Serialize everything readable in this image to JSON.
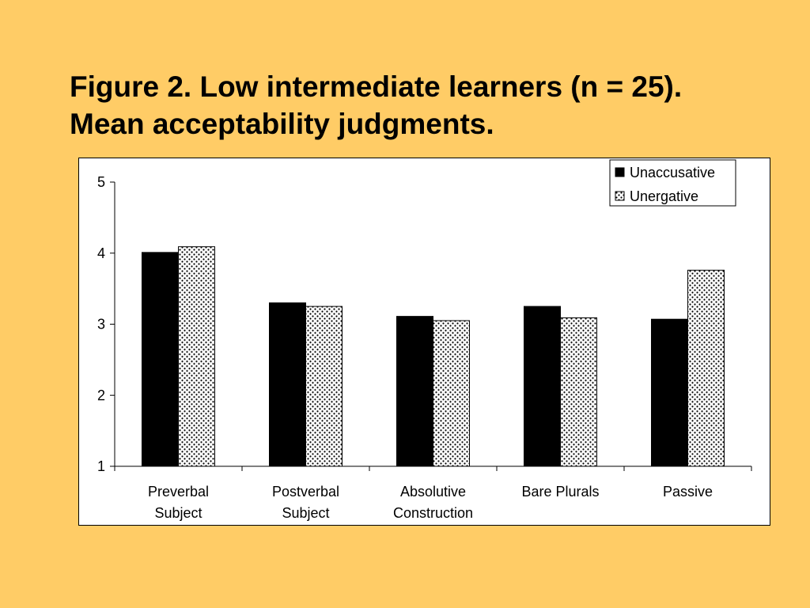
{
  "slide": {
    "title_line1": "Figure 2. Low intermediate learners (n = 25).",
    "title_line2": "Mean acceptability judgments."
  },
  "colors": {
    "background": "#FFCC66",
    "unaccusative": "#000000",
    "unergative_pattern": "dotted"
  },
  "chart_data": {
    "type": "bar",
    "categories": [
      [
        "Preverbal",
        "Subject"
      ],
      [
        "Postverbal",
        "Subject"
      ],
      [
        "Absolutive",
        "Construction"
      ],
      [
        "Bare Plurals"
      ],
      [
        "Passive"
      ]
    ],
    "series": [
      {
        "name": "Unaccusative",
        "values": [
          4.01,
          3.3,
          3.11,
          3.25,
          3.07
        ]
      },
      {
        "name": "Unergative",
        "values": [
          4.09,
          3.25,
          3.05,
          3.09,
          3.76
        ]
      }
    ],
    "ylim": [
      1,
      5
    ],
    "yticks": [
      1,
      2,
      3,
      4,
      5
    ],
    "grid": false,
    "legend": "top-right",
    "xlabel": "",
    "ylabel": ""
  }
}
